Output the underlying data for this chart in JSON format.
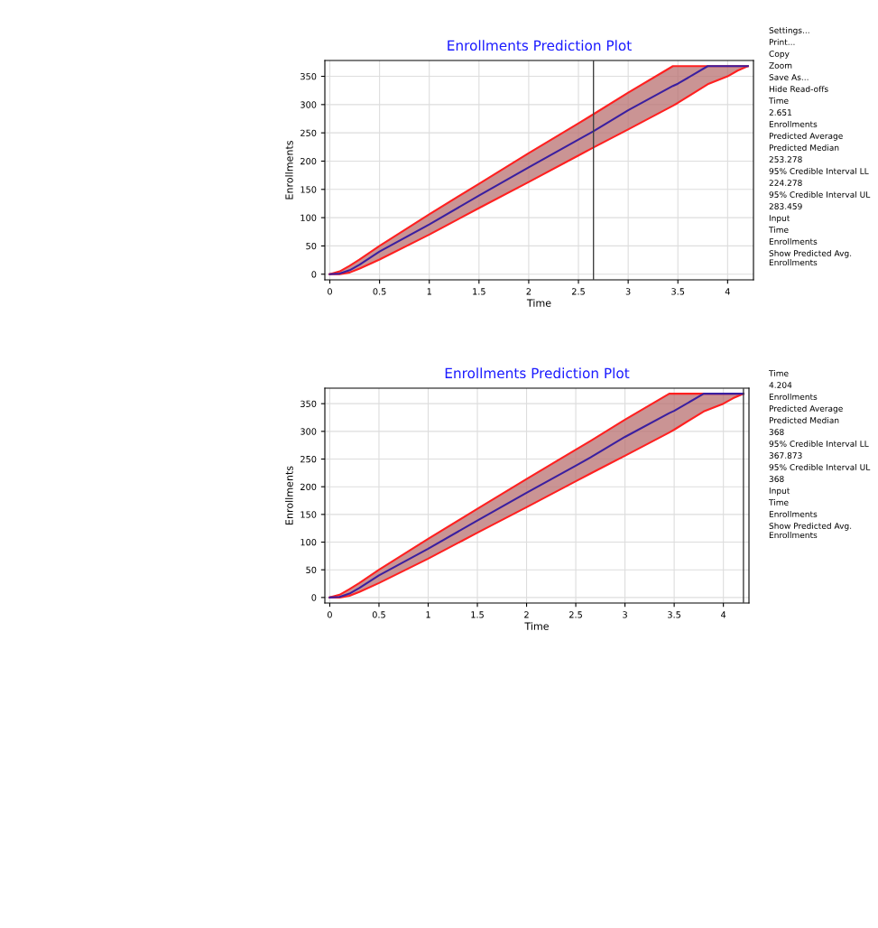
{
  "chart_data": [
    {
      "type": "line",
      "title": "Enrollments Prediction Plot",
      "xlabel": "Time",
      "ylabel": "Enrollments",
      "xlim": [
        -0.05,
        4.26
      ],
      "ylim": [
        -10,
        378
      ],
      "xticks": [
        0,
        0.5,
        1,
        1.5,
        2,
        2.5,
        3,
        3.5,
        4
      ],
      "yticks": [
        0,
        50,
        100,
        150,
        200,
        250,
        300,
        350
      ],
      "grid": true,
      "legend": false,
      "line_style": "solid",
      "marker": "none",
      "x": [
        0,
        0.1,
        0.2,
        0.3,
        0.5,
        1,
        1.5,
        2,
        2.5,
        2.651,
        3,
        3.45,
        3.5,
        3.8,
        4,
        4.1,
        4.204
      ],
      "series": [
        {
          "color": "#3a1fa0",
          "values": [
            0,
            1,
            7,
            17,
            40,
            88,
            139,
            189,
            238,
            253,
            290,
            333,
            337,
            368,
            368,
            368,
            368
          ],
          "lower": [
            0,
            0,
            3,
            10,
            26,
            70,
            117,
            163,
            210,
            224,
            256,
            298,
            303,
            336,
            350,
            360,
            368
          ],
          "upper": [
            0,
            5,
            15,
            26,
            50,
            106,
            160,
            214,
            267,
            283,
            321,
            368,
            368,
            368,
            368,
            368,
            368
          ]
        }
      ],
      "ref_lines": [
        {
          "axis": "x",
          "value": 2.651,
          "color": "#404040"
        }
      ],
      "annotations": [
        "Settings...",
        "Print...",
        "Copy",
        "Zoom",
        "Save As...",
        "Hide Read-offs",
        "Time",
        "2.651",
        "Enrollments",
        "Predicted Average",
        "Predicted Median",
        "253.278",
        "95% Credible Interval LL",
        "224.278",
        "95% Credible Interval UL",
        "283.459",
        "Input",
        "Time",
        "Enrollments",
        "Show Predicted Avg. Enrollments"
      ]
    },
    {
      "type": "line",
      "title": "Enrollments Prediction Plot",
      "xlabel": "Time",
      "ylabel": "Enrollments",
      "xlim": [
        -0.05,
        4.26
      ],
      "ylim": [
        -10,
        378
      ],
      "xticks": [
        0,
        0.5,
        1,
        1.5,
        2,
        2.5,
        3,
        3.5,
        4
      ],
      "yticks": [
        0,
        50,
        100,
        150,
        200,
        250,
        300,
        350
      ],
      "grid": true,
      "legend": false,
      "line_style": "solid",
      "marker": "none",
      "x": [
        0,
        0.1,
        0.2,
        0.3,
        0.5,
        1,
        1.5,
        2,
        2.5,
        2.651,
        3,
        3.45,
        3.5,
        3.8,
        4,
        4.1,
        4.204
      ],
      "series": [
        {
          "color": "#3a1fa0",
          "values": [
            0,
            1,
            7,
            17,
            40,
            88,
            139,
            189,
            238,
            253,
            290,
            333,
            337,
            368,
            368,
            368,
            368
          ],
          "lower": [
            0,
            0,
            3,
            10,
            26,
            70,
            117,
            163,
            210,
            224,
            256,
            298,
            303,
            336,
            350,
            360,
            368
          ],
          "upper": [
            0,
            5,
            15,
            26,
            50,
            106,
            160,
            214,
            267,
            283,
            321,
            368,
            368,
            368,
            368,
            368,
            368
          ]
        }
      ],
      "ref_lines": [
        {
          "axis": "x",
          "value": 4.204,
          "color": "#404040"
        }
      ],
      "annotations": [
        "Time",
        "4.204",
        "Enrollments",
        "Predicted Average",
        "Predicted Median",
        "368",
        "95% Credible Interval LL",
        "367.873",
        "95% Credible Interval UL",
        "368",
        "Input",
        "Time",
        "Enrollments",
        "Show Predicted Avg. Enrollments"
      ]
    }
  ]
}
